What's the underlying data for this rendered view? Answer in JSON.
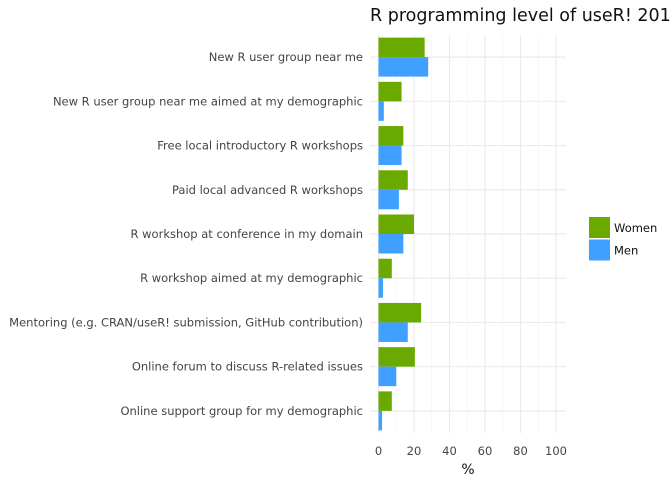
{
  "chart_data": {
    "type": "bar",
    "orientation": "horizontal",
    "title": "R programming level of useR! 201",
    "xlabel": "%",
    "ylabel": "",
    "xlim": [
      0,
      105
    ],
    "x_ticks": [
      0,
      20,
      40,
      60,
      80,
      100
    ],
    "grid": true,
    "legend_position": "right",
    "categories": [
      "New R user group near me",
      "New R user group near me aimed at my demographic",
      "Free local introductory R workshops",
      "Paid local advanced R workshops",
      "R workshop at conference in my domain",
      "R workshop aimed at my demographic",
      "Mentoring (e.g. CRAN/useR! submission, GitHub contribution)",
      "Online forum to discuss R-related issues",
      "Online support group for my demographic"
    ],
    "series": [
      {
        "name": "Women",
        "color": "#6aaa00",
        "values": [
          26,
          13,
          14,
          16.5,
          20,
          7.5,
          24,
          20.5,
          7.5
        ]
      },
      {
        "name": "Men",
        "color": "#3fa0ff",
        "values": [
          28,
          3,
          13,
          11.5,
          14,
          2.5,
          16.5,
          10,
          2
        ]
      }
    ]
  }
}
